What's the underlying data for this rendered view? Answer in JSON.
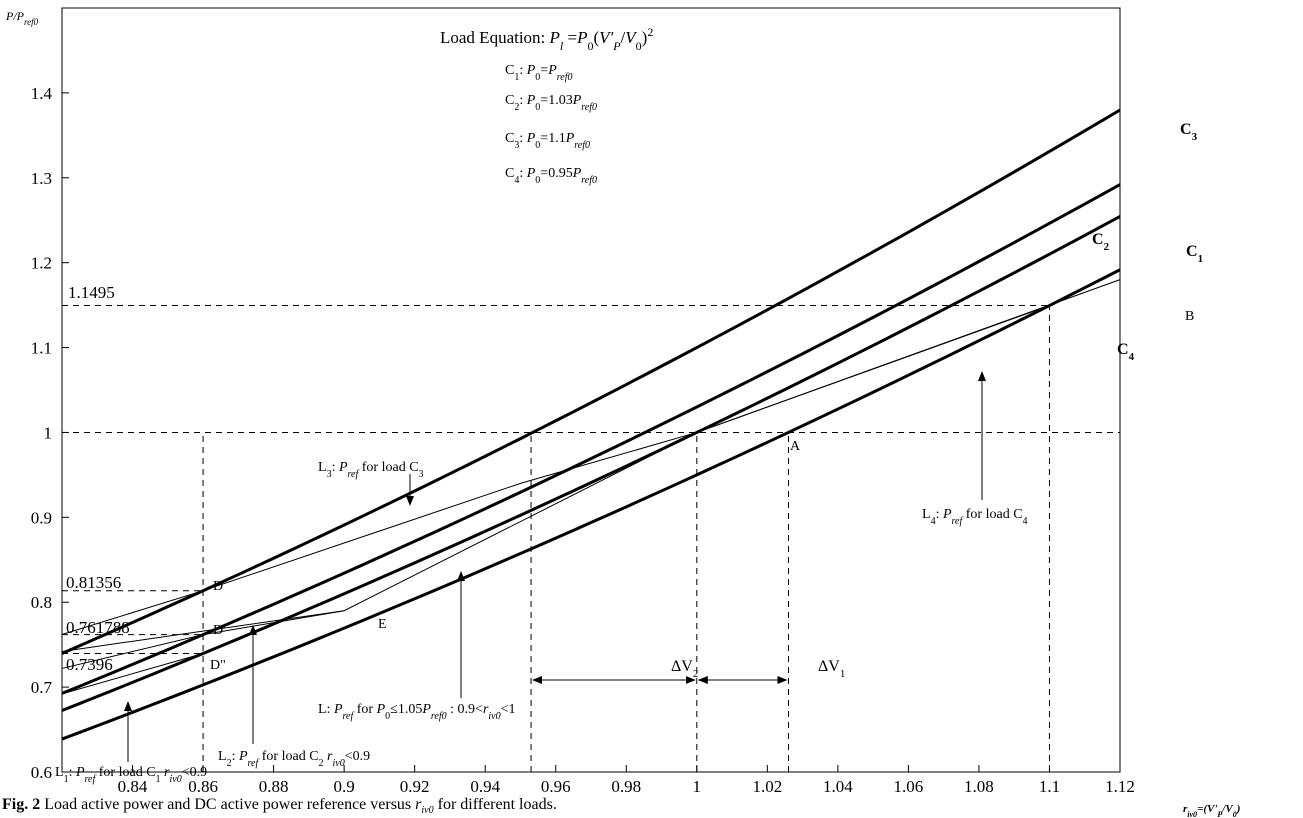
{
  "chart_data": {
    "type": "line",
    "xlim": [
      0.82,
      1.12
    ],
    "ylim": [
      0.6,
      1.5
    ],
    "grid": false,
    "x_ticks": [
      "0.84",
      "0.86",
      "0.88",
      "0.9",
      "0.92",
      "0.94",
      "0.96",
      "0.98",
      "1",
      "1.02",
      "1.04",
      "1.06",
      "1.08",
      "1.1",
      "1.12"
    ],
    "x_tick_values": [
      0.84,
      0.86,
      0.88,
      0.9,
      0.92,
      0.94,
      0.96,
      0.98,
      1.0,
      1.02,
      1.04,
      1.06,
      1.08,
      1.1,
      1.12
    ],
    "y_ticks": [
      "0.6",
      "0.7",
      "0.8",
      "0.9",
      "1",
      "1.1",
      "1.2",
      "1.3",
      "1.4"
    ],
    "y_tick_values": [
      0.6,
      0.7,
      0.8,
      0.9,
      1.0,
      1.1,
      1.2,
      1.3,
      1.4
    ],
    "ylabel": "P/P_ref0",
    "xlabel": "r_iv0=(V'P/V0)",
    "load_curves": [
      {
        "name": "C3",
        "P0": 1.1
      },
      {
        "name": "C2",
        "P0": 1.03
      },
      {
        "name": "C1",
        "P0": 1.0
      },
      {
        "name": "C4",
        "P0": 0.95
      }
    ],
    "reference_lines": [
      {
        "name": "L",
        "x": [
          0.82,
          0.9,
          1.0,
          1.12
        ],
        "y": [
          0.742,
          0.79,
          1.0,
          1.18
        ]
      },
      {
        "name": "L1",
        "x": [
          0.82,
          0.86
        ],
        "y": [
          0.692,
          0.7396
        ]
      },
      {
        "name": "L2",
        "x": [
          0.82,
          0.86,
          0.9
        ],
        "y": [
          0.722,
          0.761788,
          0.79
        ]
      },
      {
        "name": "L3",
        "x": [
          0.82,
          0.86,
          0.95,
          1.0
        ],
        "y": [
          0.762,
          0.81356,
          0.94,
          1.0
        ]
      },
      {
        "name": "L4",
        "x": [
          1.0,
          1.1
        ],
        "y": [
          1.0,
          1.1495
        ]
      }
    ],
    "guides": {
      "h": [
        {
          "y": 1.1495,
          "x_end": 1.1
        },
        {
          "y": 1.0,
          "x_end": 1.12
        },
        {
          "y": 0.81356,
          "x_end": 0.86
        },
        {
          "y": 0.761788,
          "x_end": 0.86
        },
        {
          "y": 0.7396,
          "x_end": 0.86
        }
      ],
      "v": [
        {
          "x": 0.86,
          "y_top": 1.0
        },
        {
          "x": 0.953,
          "y_top": 1.0
        },
        {
          "x": 1.0,
          "y_top": 1.0
        },
        {
          "x": 1.026,
          "y_top": 1.0
        },
        {
          "x": 1.1,
          "y_top": 1.1495
        }
      ]
    },
    "value_labels": [
      "1.1495",
      "0.81356",
      "0.761788",
      "0.7396"
    ],
    "points": [
      {
        "label": "A",
        "x": 1.0,
        "y": 1.0
      },
      {
        "label": "B",
        "x": 1.1,
        "y": 1.1495
      },
      {
        "label": "D",
        "x": 0.86,
        "y": 0.81356
      },
      {
        "label": "D'",
        "x": 0.86,
        "y": 0.761788
      },
      {
        "label": "D\"",
        "x": 0.86,
        "y": 0.7396
      },
      {
        "label": "E",
        "x": 0.9,
        "y": 0.79
      }
    ],
    "delta_v": [
      {
        "label": "ΔV2",
        "x_from": 0.953,
        "x_to": 1.0
      },
      {
        "label": "ΔV1",
        "x_from": 1.0,
        "x_to": 1.026
      }
    ],
    "legend": {
      "title": "Load Equation: Pl=P0(V'P/V0)2",
      "entries": [
        "C1: P0=Pref0",
        "C2: P0=1.03Pref0",
        "C3: P0=1.1Pref0",
        "C4: P0=0.95Pref0"
      ]
    },
    "annotations": [
      "L3: Pref for load C3",
      "L4: Pref for load C4",
      "L: Pref for P0≤1.05Pref0 : 0.9<riv0<1",
      "L2: Pref for load C2 riv0<0.9",
      "L1: Pref for load C1 riv0<0.9"
    ],
    "caption": "Fig. 2 Load active power and DC active power reference versus riv0 for different loads."
  }
}
